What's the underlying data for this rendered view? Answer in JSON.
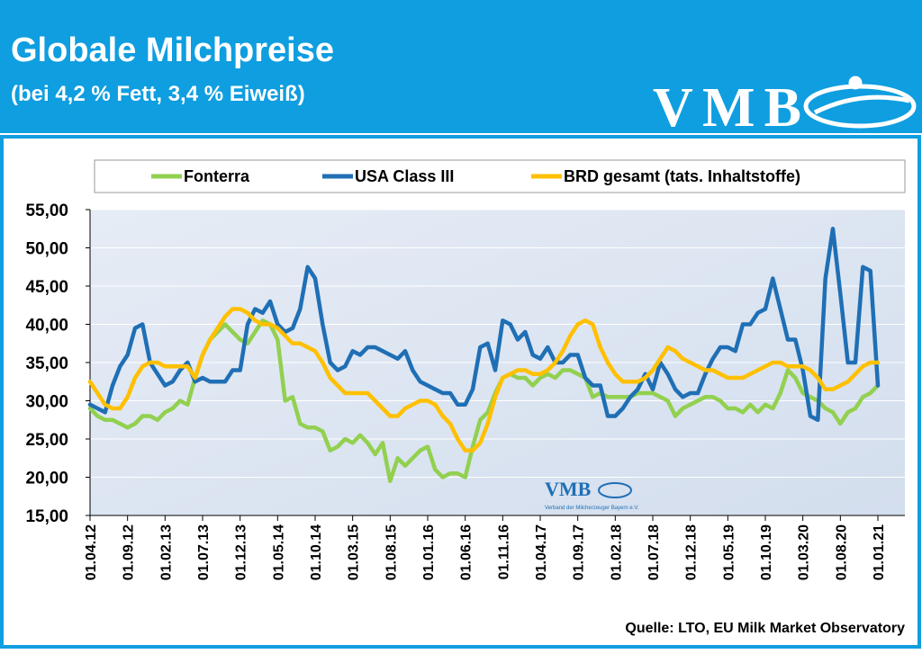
{
  "header": {
    "title": "Globale Milchpreise",
    "subtitle": "(bei 4,2 % Fett, 3,4 % Eiweiß)",
    "logo": "VMB"
  },
  "watermark": {
    "logo": "VMB",
    "text": "Verband der Milcherzeuger Bayern e.V."
  },
  "source": "Quelle:  LTO, EU Milk Market Observatory",
  "chart_data": {
    "type": "line",
    "categories": [
      "01.04.12",
      null,
      null,
      null,
      null,
      "01.09.12",
      null,
      null,
      null,
      null,
      "01.02.13",
      null,
      null,
      null,
      null,
      "01.07.13",
      null,
      null,
      null,
      null,
      "01.12.13",
      null,
      null,
      null,
      null,
      "01.05.14",
      null,
      null,
      null,
      null,
      "01.10.14",
      null,
      null,
      null,
      null,
      "01.03.15",
      null,
      null,
      null,
      null,
      "01.08.15",
      null,
      null,
      null,
      null,
      "01.01.16",
      null,
      null,
      null,
      null,
      "01.06.16",
      null,
      null,
      null,
      null,
      "01.11.16",
      null,
      null,
      null,
      null,
      "01.04.17",
      null,
      null,
      null,
      null,
      "01.09.17",
      null,
      null,
      null,
      null,
      "01.02.18",
      null,
      null,
      null,
      null,
      "01.07.18",
      null,
      null,
      null,
      null,
      "01.12.18",
      null,
      null,
      null,
      null,
      "01.05.19",
      null,
      null,
      null,
      null,
      "01.10.19",
      null,
      null,
      null,
      null,
      "01.03.20",
      null,
      null,
      null,
      null,
      "01.08.20",
      null,
      null,
      null,
      null,
      "01.01.21"
    ],
    "series": [
      {
        "name": "Fonterra",
        "color": "#92d050",
        "values": [
          29,
          28,
          27.5,
          27.5,
          27,
          26.5,
          27,
          28,
          28,
          27.5,
          28.5,
          29,
          30,
          29.5,
          33,
          36,
          38,
          39,
          40,
          39,
          38,
          37.5,
          39,
          40.5,
          40,
          38,
          30,
          30.5,
          27,
          26.5,
          26.5,
          26,
          23.5,
          24,
          25,
          24.5,
          25.5,
          24.5,
          23,
          24.5,
          19.5,
          22.5,
          21.5,
          22.5,
          23.5,
          24,
          21,
          20,
          20.5,
          20.5,
          20,
          24,
          27.5,
          28.5,
          31,
          33,
          33.5,
          33,
          33,
          32,
          33,
          33.5,
          33,
          34,
          34,
          33.5,
          33,
          30.5,
          31,
          30.5,
          30.5,
          30.5,
          30.5,
          31,
          31,
          31,
          30.5,
          30,
          28,
          29,
          29.5,
          30,
          30.5,
          30.5,
          30,
          29,
          29,
          28.5,
          29.5,
          28.5,
          29.5,
          29,
          31,
          34,
          33,
          31,
          30.5,
          30,
          29,
          28.5,
          27,
          28.5,
          29,
          30.5,
          31,
          32
        ]
      },
      {
        "name": "USA Class III",
        "color": "#1f6fb5",
        "values": [
          29.5,
          29,
          28.5,
          32,
          34.5,
          36,
          39.5,
          40,
          35,
          33.5,
          32,
          32.5,
          34,
          35,
          32.5,
          33,
          32.5,
          32.5,
          32.5,
          34,
          34,
          40,
          42,
          41.5,
          43,
          40,
          39,
          39.5,
          42,
          47.5,
          46,
          40,
          35,
          34,
          34.5,
          36.5,
          36,
          37,
          37,
          36.5,
          36,
          35.5,
          36.5,
          34,
          32.5,
          32,
          31.5,
          31,
          31,
          29.5,
          29.5,
          31.5,
          37,
          37.5,
          34,
          40.5,
          40,
          38,
          39,
          36,
          35.5,
          37,
          35,
          35,
          36,
          36,
          33,
          32,
          32,
          28,
          28,
          29,
          30.5,
          31.5,
          33.5,
          31.5,
          35,
          33.5,
          31.5,
          30.5,
          31,
          31,
          33.5,
          35.5,
          37,
          37,
          36.5,
          40,
          40,
          41.5,
          42,
          46,
          42,
          38,
          38,
          34,
          28,
          27.5,
          46,
          52.5,
          44,
          35,
          35,
          47.5,
          47,
          32
        ]
      },
      {
        "name": "BRD gesamt (tats. Inhaltstoffe)",
        "color": "#ffc000",
        "values": [
          32.5,
          31,
          29.5,
          29,
          29,
          30.5,
          33,
          34.5,
          35,
          35,
          34.5,
          34.5,
          34.5,
          34.5,
          33,
          36,
          38,
          39.5,
          41,
          42,
          42,
          41.5,
          40.5,
          40,
          40,
          39.5,
          38.5,
          37.5,
          37.5,
          37,
          36.5,
          35,
          33,
          32,
          31,
          31,
          31,
          31,
          30,
          29,
          28,
          28,
          29,
          29.5,
          30,
          30,
          29.5,
          28,
          27,
          25,
          23.5,
          23.5,
          24.5,
          27,
          30.5,
          33,
          33.5,
          34,
          34,
          33.5,
          33.5,
          34,
          35,
          36.5,
          38.5,
          40,
          40.5,
          40,
          37,
          35,
          33.5,
          32.5,
          32.5,
          32.5,
          33,
          34,
          35.5,
          37,
          36.5,
          35.5,
          35,
          34.5,
          34,
          34,
          33.5,
          33,
          33,
          33,
          33.5,
          34,
          34.5,
          35,
          35,
          34.5,
          34.5,
          34.5,
          34,
          33,
          31.5,
          31.5,
          32,
          32.5,
          33.5,
          34.5,
          35,
          35
        ]
      }
    ],
    "ylim": [
      15,
      55
    ],
    "yticks": [
      {
        "value": 15,
        "label": "15,00"
      },
      {
        "value": 20,
        "label": "20,00"
      },
      {
        "value": 25,
        "label": "25,00"
      },
      {
        "value": 30,
        "label": "30,00"
      },
      {
        "value": 35,
        "label": "35,00"
      },
      {
        "value": 40,
        "label": "40,00"
      },
      {
        "value": 45,
        "label": "45,00"
      },
      {
        "value": 50,
        "label": "50,00"
      },
      {
        "value": 55,
        "label": "55,00"
      }
    ],
    "grid": true
  }
}
